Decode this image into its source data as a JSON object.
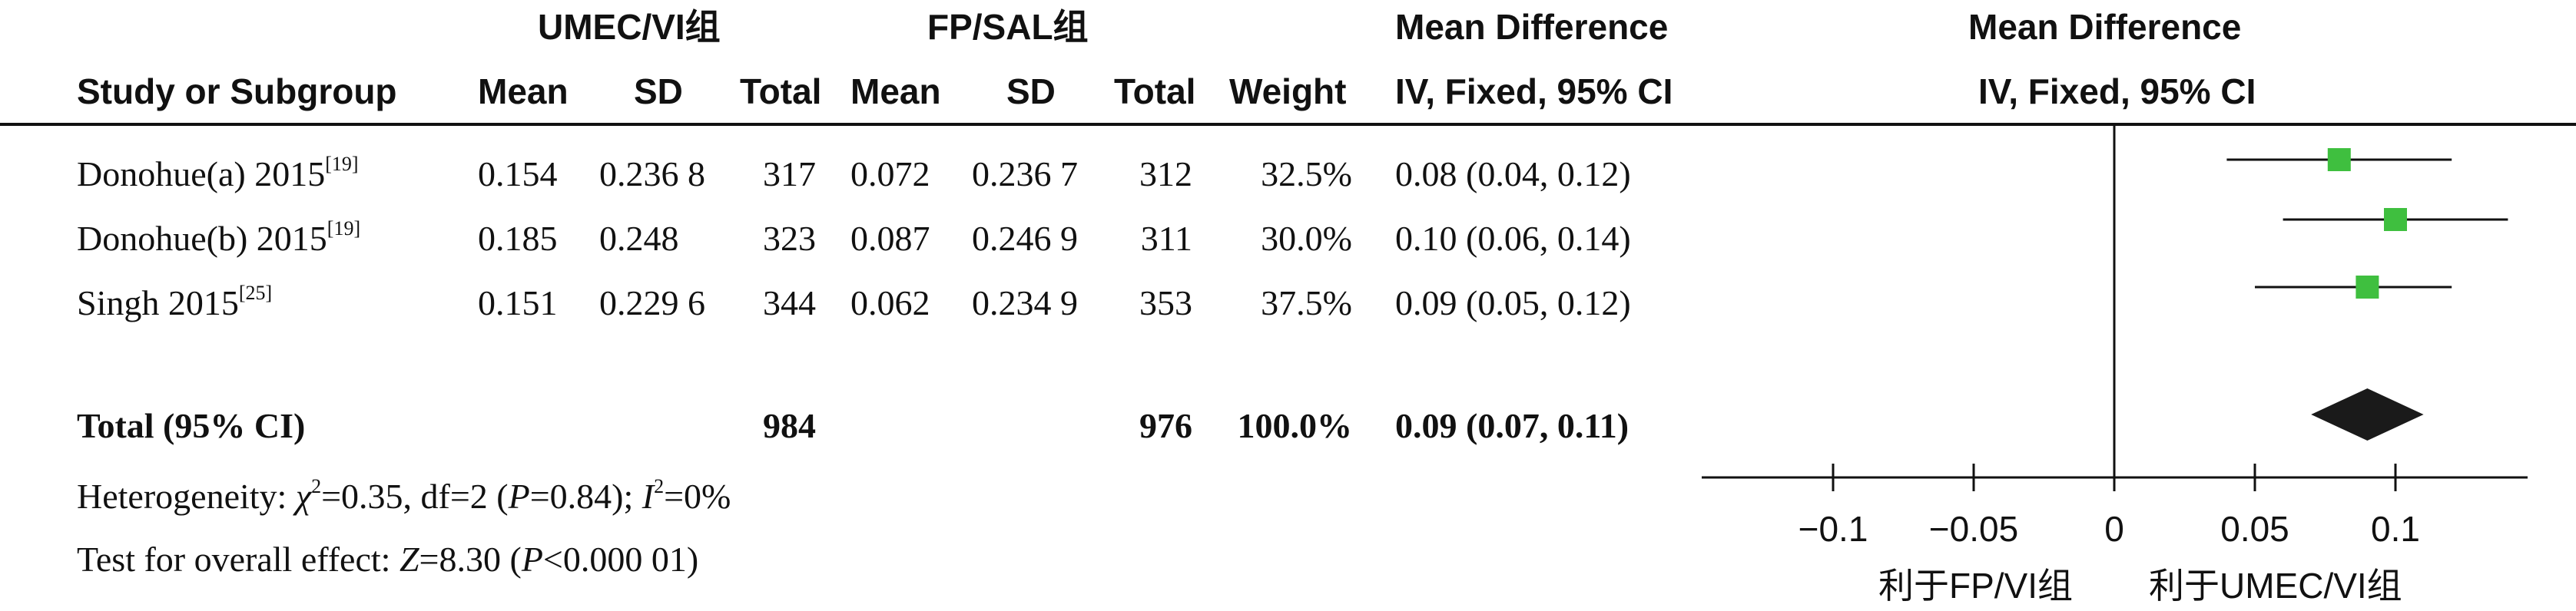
{
  "header": {
    "group1": "UMEC/VI组",
    "group2": "FP/SAL组",
    "md_title_table": "Mean Difference",
    "md_title_plot": "Mean Difference",
    "study_col": "Study or Subgroup",
    "g1_mean": "Mean",
    "g1_sd": "SD",
    "g1_total": "Total",
    "g2_mean": "Mean",
    "g2_sd": "SD",
    "g2_total": "Total",
    "weight": "Weight",
    "md_method_table": "IV, Fixed, 95% CI",
    "md_method_plot": "IV, Fixed, 95% CI"
  },
  "rows": [
    {
      "study": "Donohue(a) 2015",
      "ref": "[19]",
      "g1_mean": "0.154",
      "g1_sd": "0.236 8",
      "g1_total": "317",
      "g2_mean": "0.072",
      "g2_sd": "0.236 7",
      "g2_total": "312",
      "weight": "32.5%",
      "ci_text": "0.08 (0.04, 0.12)"
    },
    {
      "study": "Donohue(b) 2015",
      "ref": "[19]",
      "g1_mean": "0.185",
      "g1_sd": "0.248",
      "g1_total": "323",
      "g2_mean": "0.087",
      "g2_sd": "0.246 9",
      "g2_total": "311",
      "weight": "30.0%",
      "ci_text": "0.10 (0.06, 0.14)"
    },
    {
      "study": "Singh 2015",
      "ref": "[25]",
      "g1_mean": "0.151",
      "g1_sd": "0.229 6",
      "g1_total": "344",
      "g2_mean": "0.062",
      "g2_sd": "0.234 9",
      "g2_total": "353",
      "weight": "37.5%",
      "ci_text": "0.09 (0.05, 0.12)"
    }
  ],
  "total": {
    "label": "Total (95% CI)",
    "g1_total": "984",
    "g2_total": "976",
    "weight": "100.0%",
    "ci_text": "0.09 (0.07, 0.11)"
  },
  "footer": {
    "heterogeneity_prefix": "Heterogeneity: ",
    "chi_symbol": "χ",
    "chi_value": "=0.35, df=2 (",
    "het_p_symbol": "P",
    "het_p_value": "=0.84); ",
    "i_symbol": "I",
    "i_value": "=0%",
    "overall_prefix": "Test for overall effect: ",
    "z_symbol": "Z",
    "z_value": "=8.30 (",
    "overall_p_symbol": "P",
    "overall_p_value": "<0.000 01)"
  },
  "axis": {
    "favours_left": "利于FP/VI组",
    "favours_right": "利于UMEC/VI组"
  },
  "colors": {
    "study_marker": "#3fbf3f",
    "diamond": "#1a1a1a",
    "line": "#111111"
  },
  "chart_data": {
    "type": "forest",
    "xlim": [
      -0.15,
      0.15
    ],
    "ticks": [
      -0.1,
      -0.05,
      0,
      0.05,
      0.1
    ],
    "tick_labels": [
      "−0.1",
      "−0.05",
      "0",
      "0.05",
      "0.1"
    ],
    "studies": [
      {
        "name": "Donohue(a) 2015",
        "estimate": 0.08,
        "ci_low": 0.04,
        "ci_high": 0.12,
        "weight": 32.5
      },
      {
        "name": "Donohue(b) 2015",
        "estimate": 0.1,
        "ci_low": 0.06,
        "ci_high": 0.14,
        "weight": 30.0
      },
      {
        "name": "Singh 2015",
        "estimate": 0.09,
        "ci_low": 0.05,
        "ci_high": 0.12,
        "weight": 37.5
      }
    ],
    "pooled": {
      "estimate": 0.09,
      "ci_low": 0.07,
      "ci_high": 0.11
    }
  }
}
